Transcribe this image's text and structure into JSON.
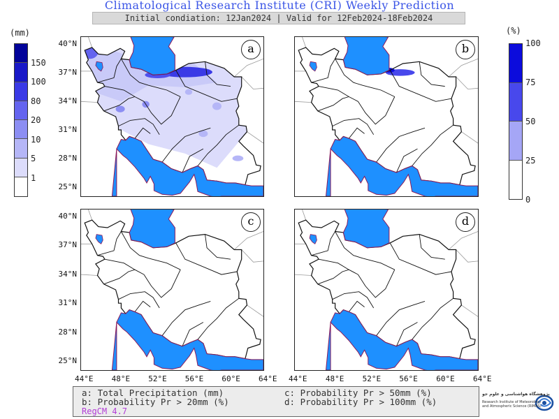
{
  "header": {
    "title": "Climatological Research Institute (CRI) Weekly Prediction",
    "subtitle": "Initial condiation: 12Jan2024 | Valid for 12Feb2024-18Feb2024"
  },
  "colorbar_left": {
    "unit": "(mm)",
    "labels": [
      "150",
      "100",
      "80",
      "20",
      "10",
      "5",
      "1"
    ],
    "colors": [
      "#02039a",
      "#1919c8",
      "#3a3ae6",
      "#6464ef",
      "#8c8ef3",
      "#b5b6f7",
      "#dcdcfb",
      "#ffffff"
    ]
  },
  "colorbar_right": {
    "unit": "(%)",
    "labels": [
      "100",
      "75",
      "50",
      "25",
      "0"
    ],
    "colors": [
      "#0c0cdc",
      "#4848ec",
      "#a5a6f6",
      "#ffffff"
    ]
  },
  "panels": [
    {
      "letter": "a"
    },
    {
      "letter": "b"
    },
    {
      "letter": "c"
    },
    {
      "letter": "d"
    }
  ],
  "axes": {
    "lat_labels": [
      "40°N",
      "37°N",
      "34°N",
      "31°N",
      "28°N",
      "25°N"
    ],
    "lon_labels": [
      "44°E",
      "48°E",
      "52°E",
      "56°E",
      "60°E",
      "64°E"
    ]
  },
  "legend": {
    "a": "a: Total Precipitation (mm)",
    "b": "b: Probability Pr > 20mm (%)",
    "c": "c: Probability Pr > 50mm (%)",
    "d": "d: Probability Pr > 100mm (%)",
    "model": "RegCM 4.7"
  },
  "logo": {
    "name_fa": "پژوهشگاه هواشناسی و علوم جو",
    "name_en_1": "Research Institute of Meteorology",
    "name_en_2": "and Atmospheric Science (RIMAS)"
  },
  "colors": {
    "water": "#1e90ff",
    "coast": "#8b1a5a",
    "title": "#3b55e6"
  }
}
